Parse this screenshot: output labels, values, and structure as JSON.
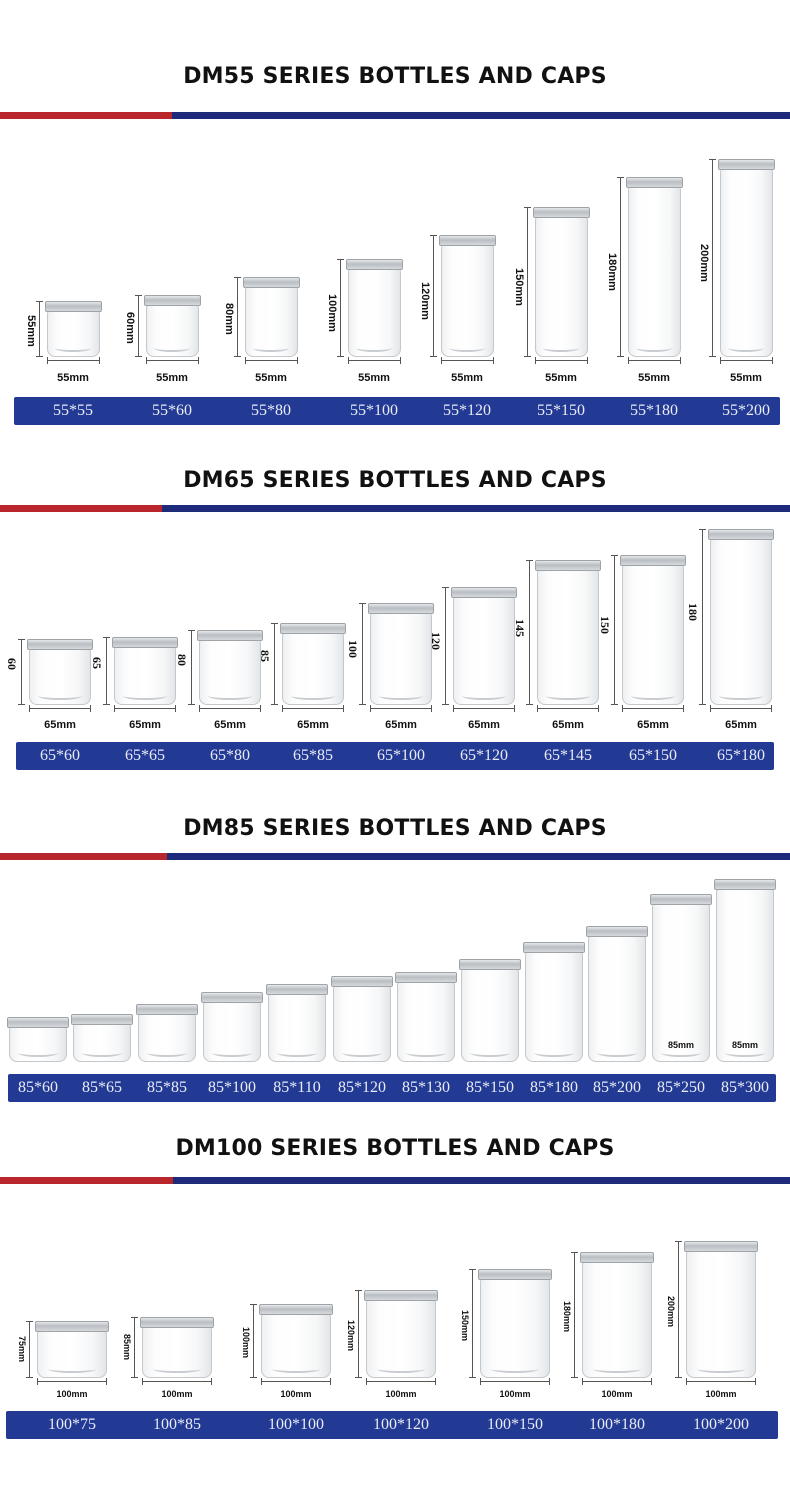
{
  "sections": [
    {
      "title": "DM55 SERIES BOTTLES AND CAPS",
      "labels": [
        "55*55",
        "55*60",
        "55*80",
        "55*100",
        "55*120",
        "55*150",
        "55*180",
        "55*200"
      ],
      "widths": [
        "55mm",
        "55mm",
        "55mm",
        "55mm",
        "55mm",
        "55mm",
        "55mm",
        "55mm"
      ],
      "heights": [
        "55mm",
        "60mm",
        "80mm",
        "100mm",
        "120mm",
        "150mm",
        "180mm",
        "200mm"
      ]
    },
    {
      "title": "DM65 SERIES BOTTLES AND CAPS",
      "labels": [
        "65*60",
        "65*65",
        "65*80",
        "65*85",
        "65*100",
        "65*120",
        "65*145",
        "65*150",
        "65*180"
      ],
      "widths": [
        "65mm",
        "65mm",
        "65mm",
        "65mm",
        "65mm",
        "65mm",
        "65mm",
        "65mm",
        "65mm"
      ],
      "heights": [
        "60",
        "65",
        "80",
        "85",
        "100",
        "120",
        "145",
        "150",
        "180"
      ]
    },
    {
      "title": "DM85 SERIES BOTTLES AND CAPS",
      "labels": [
        "85*60",
        "85*65",
        "85*85",
        "85*100",
        "85*110",
        "85*120",
        "85*130",
        "85*150",
        "85*180",
        "85*200",
        "85*250",
        "85*300"
      ],
      "inner_widths": [
        "85mm",
        "85mm"
      ]
    },
    {
      "title": "DM100 SERIES BOTTLES AND CAPS",
      "labels": [
        "100*75",
        "100*85",
        "100*100",
        "100*120",
        "100*150",
        "100*180",
        "100*200"
      ],
      "widths": [
        "100mm",
        "100mm",
        "100mm",
        "100mm",
        "100mm",
        "100mm",
        "100mm"
      ],
      "heights": [
        "75mm",
        "85mm",
        "100mm",
        "120mm",
        "150mm",
        "180mm",
        "200mm"
      ]
    }
  ],
  "colors": {
    "stripe_red": "#b8262b",
    "stripe_blue": "#1e2a7a",
    "label_bar": "#233a94"
  }
}
